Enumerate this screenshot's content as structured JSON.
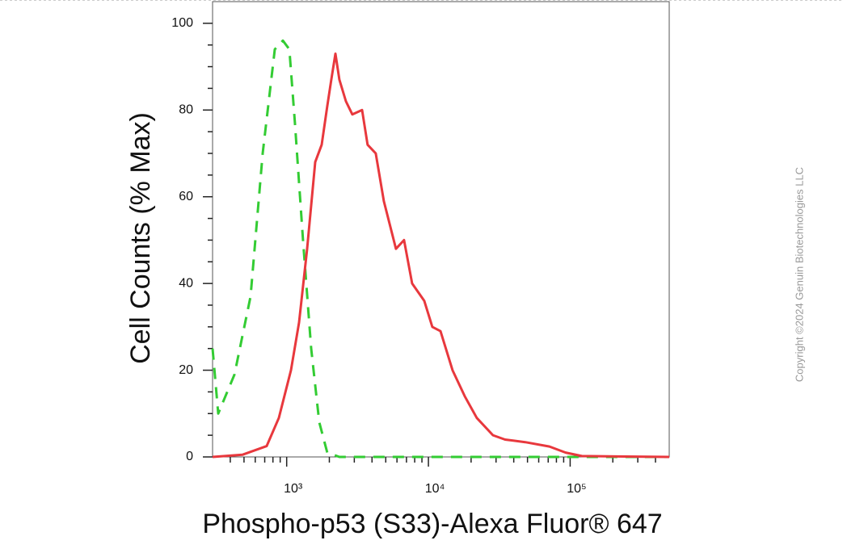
{
  "chart_data": {
    "type": "line",
    "xlabel": "Phospho-p53 (S33)-Alexa Fluor® 647",
    "ylabel": "Cell Counts (% Max)",
    "copyright": "Copyright ©2024 Genuin Biotechnologies LLC",
    "xscale": "log",
    "xlim": [
      300,
      500000
    ],
    "ylim": [
      0,
      105
    ],
    "xticks": [
      {
        "value": 1000,
        "label": "10³"
      },
      {
        "value": 10000,
        "label": "10⁴"
      },
      {
        "value": 100000,
        "label": "10⁵"
      }
    ],
    "xminorticks": [
      400,
      500,
      600,
      700,
      800,
      900,
      2000,
      3000,
      4000,
      5000,
      6000,
      7000,
      8000,
      9000,
      20000,
      30000,
      40000,
      50000,
      60000,
      70000,
      80000,
      90000,
      200000,
      300000,
      400000
    ],
    "yticks": [
      0,
      20,
      40,
      60,
      80,
      100
    ],
    "yminorticks": [
      5,
      10,
      15,
      25,
      30,
      35,
      45,
      50,
      55,
      65,
      70,
      75,
      85,
      90,
      95
    ],
    "series": [
      {
        "color": "#33cc33",
        "style": "dashed",
        "x": [
          300,
          329,
          428,
          556,
          677,
          824,
          940,
          1044,
          1144,
          1304,
          1489,
          1698,
          1933,
          2355,
          500000
        ],
        "values": [
          25,
          10,
          19,
          37,
          70,
          94,
          96,
          94,
          77,
          50,
          25,
          8,
          1,
          0,
          0
        ]
      },
      {
        "color": "#e8383d",
        "style": "solid",
        "x": [
          300,
          487,
          722,
          880,
          1072,
          1222,
          1394,
          1589,
          1766,
          1936,
          2065,
          2208,
          2355,
          2618,
          2904,
          3404,
          3724,
          4253,
          4849,
          5902,
          6730,
          7674,
          9349,
          10660,
          12160,
          14800,
          18030,
          21950,
          28530,
          34750,
          48210,
          71450,
          92900,
          121000,
          500000
        ],
        "values": [
          0,
          0.5,
          2.5,
          9,
          20,
          31,
          48,
          68,
          72,
          81,
          87,
          93,
          87,
          82,
          79,
          80,
          72,
          70,
          59,
          48,
          50,
          40,
          36,
          30,
          29,
          20,
          14,
          9,
          5,
          4,
          3.4,
          2.4,
          1,
          0.2,
          0
        ]
      }
    ]
  }
}
